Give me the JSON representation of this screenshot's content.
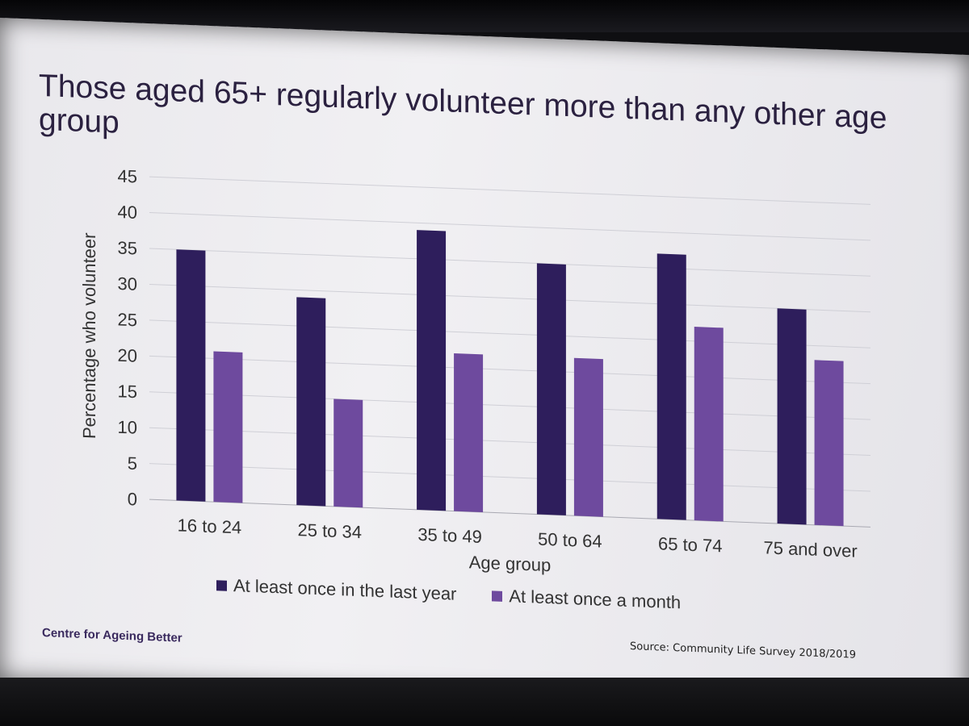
{
  "slide": {
    "title": "Those aged 65+ regularly volunteer more than any other age group",
    "brand": "Centre for Ageing Better",
    "source": "Source: Community Life Survey 2018/2019"
  },
  "colors": {
    "series1": "#2e1e5c",
    "series2": "#6e4a9e",
    "grid": "#cfcfd6",
    "axis_text": "#333333"
  },
  "chart_data": {
    "type": "bar",
    "title": "Those aged 65+ regularly volunteer more than any other age group",
    "xlabel": "Age group",
    "ylabel": "Percentage who volunteer",
    "ylim": [
      0,
      45
    ],
    "yticks": [
      0,
      5,
      10,
      15,
      20,
      25,
      30,
      35,
      40,
      45
    ],
    "grid": true,
    "legend_position": "bottom",
    "categories": [
      "16 to 24",
      "25 to 34",
      "35 to 49",
      "50 to 64",
      "65 to 74",
      "75 and over"
    ],
    "series": [
      {
        "name": "At least once in the last year",
        "values": [
          35,
          29,
          39,
          35,
          37,
          30
        ]
      },
      {
        "name": "At least once a month",
        "values": [
          21,
          15,
          22,
          22,
          27,
          23
        ]
      }
    ]
  }
}
